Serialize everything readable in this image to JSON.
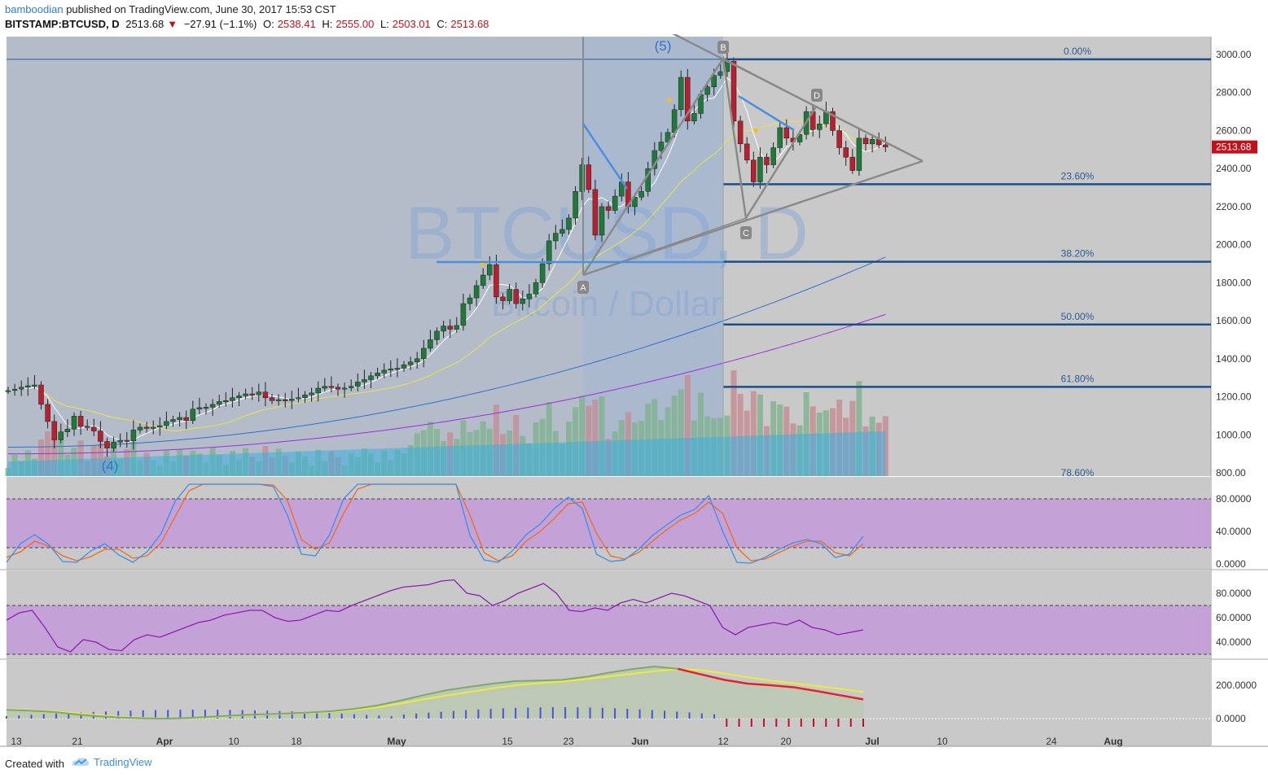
{
  "header": {
    "user": "bamboodian",
    "published": "published on TradingView.com, June 30, 2017 15:53 CST",
    "symbol": "BITSTAMP:BTCUSD, D",
    "last": "2513.68",
    "change_arrow": "▼",
    "change": "−27.91 (−1.1%)",
    "open_label": "O:",
    "open": "2538.41",
    "high_label": "H:",
    "high": "2555.00",
    "low_label": "L:",
    "low": "2503.01",
    "close_label": "C:",
    "close": "2513.68"
  },
  "footer": {
    "created_with": "Created with",
    "brand": "TradingView"
  },
  "colors": {
    "panel_bg": "#c9c9c9",
    "plot_bg_left": "#b3bcc9",
    "up": "#1f7a3a",
    "down": "#b8202f",
    "fib_line": "#1b4f8a",
    "fib_text": "#2a5a95",
    "triangle": "#8a8a8a",
    "blue_line": "#4a8fe0",
    "sma_white": "#ffffff",
    "sma_yellow": "#e5e54a",
    "sma_blue": "#2f6fd0",
    "sma_purple": "#9b2fe0",
    "volume": "#3aaee0",
    "osc_band": "#c4a2d8",
    "stoch_k": "#3d8ee8",
    "stoch_d": "#f06a20",
    "rsi": "#8f1fb0",
    "price_tag": "#c0121c"
  },
  "chart_data": [
    {
      "type": "candlestick",
      "title": "BITSTAMP:BTCUSD, D",
      "watermark": "BTCUSD, D",
      "watermark_sub": "Bitcoin / Dollar",
      "x_ticks": [
        "13",
        "21",
        "Apr",
        "10",
        "18",
        "May",
        "15",
        "23",
        "Jun",
        "12",
        "20",
        "Jul",
        "10",
        "24",
        "Aug"
      ],
      "ylim": [
        800,
        3000
      ],
      "y_ticks": [
        "3000.00",
        "2800.00",
        "2600.00",
        "2400.00",
        "2200.00",
        "2000.00",
        "1800.00",
        "1600.00",
        "1400.00",
        "1200.00",
        "1000.00",
        "800.00"
      ],
      "last_price": "2513.68",
      "closes": [
        1233,
        1240,
        1250,
        1258,
        1262,
        1160,
        1070,
        973,
        1015,
        1030,
        1098,
        1045,
        1040,
        1020,
        965,
        930,
        962,
        971,
        968,
        1025,
        1040,
        1038,
        1040,
        1048,
        1070,
        1080,
        1091,
        1075,
        1135,
        1143,
        1145,
        1160,
        1175,
        1180,
        1195,
        1205,
        1215,
        1210,
        1225,
        1195,
        1180,
        1185,
        1180,
        1188,
        1195,
        1210,
        1220,
        1245,
        1255,
        1250,
        1240,
        1247,
        1255,
        1278,
        1290,
        1310,
        1325,
        1340,
        1347,
        1350,
        1368,
        1383,
        1400,
        1455,
        1500,
        1545,
        1572,
        1555,
        1575,
        1690,
        1720,
        1785,
        1840,
        1895,
        1725,
        1705,
        1765,
        1690,
        1715,
        1740,
        1800,
        1900,
        2020,
        2060,
        2080,
        2140,
        2280,
        2420,
        2290,
        2050,
        2200,
        2180,
        2255,
        2330,
        2200,
        2250,
        2280,
        2400,
        2495,
        2540,
        2590,
        2710,
        2880,
        2650,
        2690,
        2790,
        2830,
        2890,
        2910,
        2965,
        2650,
        2530,
        2445,
        2330,
        2460,
        2420,
        2510,
        2615,
        2560,
        2540,
        2580,
        2700,
        2605,
        2635,
        2700,
        2600,
        2510,
        2460,
        2390,
        2560,
        2530,
        2554,
        2525,
        2514
      ],
      "fibonacci": [
        {
          "level": "0.00%",
          "price": 2975
        },
        {
          "level": "23.60%",
          "price": 2318
        },
        {
          "level": "38.20%",
          "price": 1910
        },
        {
          "level": "50.00%",
          "price": 1580
        },
        {
          "level": "61.80%",
          "price": 1252
        },
        {
          "level": "78.60%",
          "price": ""
        }
      ],
      "pattern_labels": [
        "A",
        "B",
        "C",
        "D"
      ],
      "wave_labels": [
        "(5)",
        "(4)"
      ],
      "overlays": [
        "SMA short (white)",
        "SMA (yellow)",
        "SMA (blue)",
        "SMA (purple)"
      ]
    },
    {
      "type": "line",
      "name": "Stochastic RSI",
      "ylim": [
        0,
        100
      ],
      "y_ticks": [
        "80.0000",
        "40.0000",
        "0.0000"
      ],
      "band": [
        20,
        80
      ],
      "series": [
        {
          "name": "K",
          "values": [
            2,
            25,
            36,
            24,
            3,
            2,
            16,
            25,
            11,
            2,
            15,
            37,
            77,
            98,
            98,
            98,
            98,
            98,
            98,
            95,
            60,
            12,
            10,
            36,
            80,
            98,
            98,
            98,
            98,
            98,
            98,
            98,
            98,
            35,
            5,
            2,
            16,
            36,
            49,
            68,
            82,
            68,
            12,
            3,
            5,
            18,
            35,
            48,
            60,
            67,
            84,
            40,
            2,
            1,
            8,
            18,
            26,
            30,
            25,
            8,
            12,
            34
          ]
        },
        {
          "name": "D",
          "values": [
            8,
            15,
            28,
            22,
            10,
            4,
            9,
            18,
            18,
            7,
            10,
            26,
            58,
            90,
            98,
            98,
            98,
            98,
            98,
            97,
            78,
            30,
            18,
            26,
            62,
            92,
            98,
            98,
            98,
            98,
            98,
            98,
            98,
            60,
            14,
            4,
            10,
            28,
            40,
            56,
            74,
            76,
            38,
            10,
            6,
            14,
            28,
            42,
            54,
            62,
            76,
            62,
            20,
            4,
            6,
            14,
            22,
            28,
            28,
            14,
            10,
            25
          ]
        }
      ]
    },
    {
      "type": "line",
      "name": "RSI",
      "ylim": [
        30,
        100
      ],
      "y_ticks": [
        "80.0000",
        "60.0000",
        "40.0000"
      ],
      "band": [
        30,
        70
      ],
      "series": [
        {
          "name": "RSI",
          "values": [
            58,
            64,
            66,
            52,
            36,
            32,
            42,
            40,
            34,
            33,
            42,
            46,
            44,
            48,
            52,
            56,
            58,
            62,
            64,
            66,
            66,
            60,
            57,
            58,
            62,
            66,
            65,
            70,
            74,
            78,
            82,
            85,
            86,
            87,
            90,
            91,
            80,
            78,
            70,
            74,
            80,
            84,
            88,
            80,
            66,
            65,
            68,
            66,
            72,
            75,
            72,
            76,
            80,
            78,
            74,
            70,
            52,
            46,
            52,
            54,
            56,
            54,
            58,
            52,
            50,
            46,
            48,
            50
          ]
        }
      ]
    },
    {
      "type": "area",
      "name": "MACD",
      "ylim": [
        -40,
        320
      ],
      "y_ticks": [
        "200.0000",
        "0.0000"
      ],
      "series": [
        {
          "name": "MACD",
          "values": [
            52,
            48,
            40,
            26,
            14,
            6,
            2,
            0,
            5,
            12,
            20,
            26,
            30,
            36,
            44,
            58,
            78,
            108,
            140,
            170,
            190,
            210,
            225,
            228,
            232,
            250,
            275,
            296,
            312,
            298,
            265,
            232,
            210,
            200,
            188,
            165,
            140,
            115
          ]
        },
        {
          "name": "Signal",
          "values": [
            55,
            50,
            44,
            32,
            20,
            10,
            4,
            1,
            3,
            10,
            18,
            24,
            28,
            34,
            40,
            52,
            68,
            90,
            115,
            138,
            160,
            182,
            200,
            212,
            222,
            236,
            252,
            268,
            285,
            296,
            290,
            270,
            248,
            228,
            212,
            195,
            178,
            160
          ]
        }
      ]
    }
  ]
}
